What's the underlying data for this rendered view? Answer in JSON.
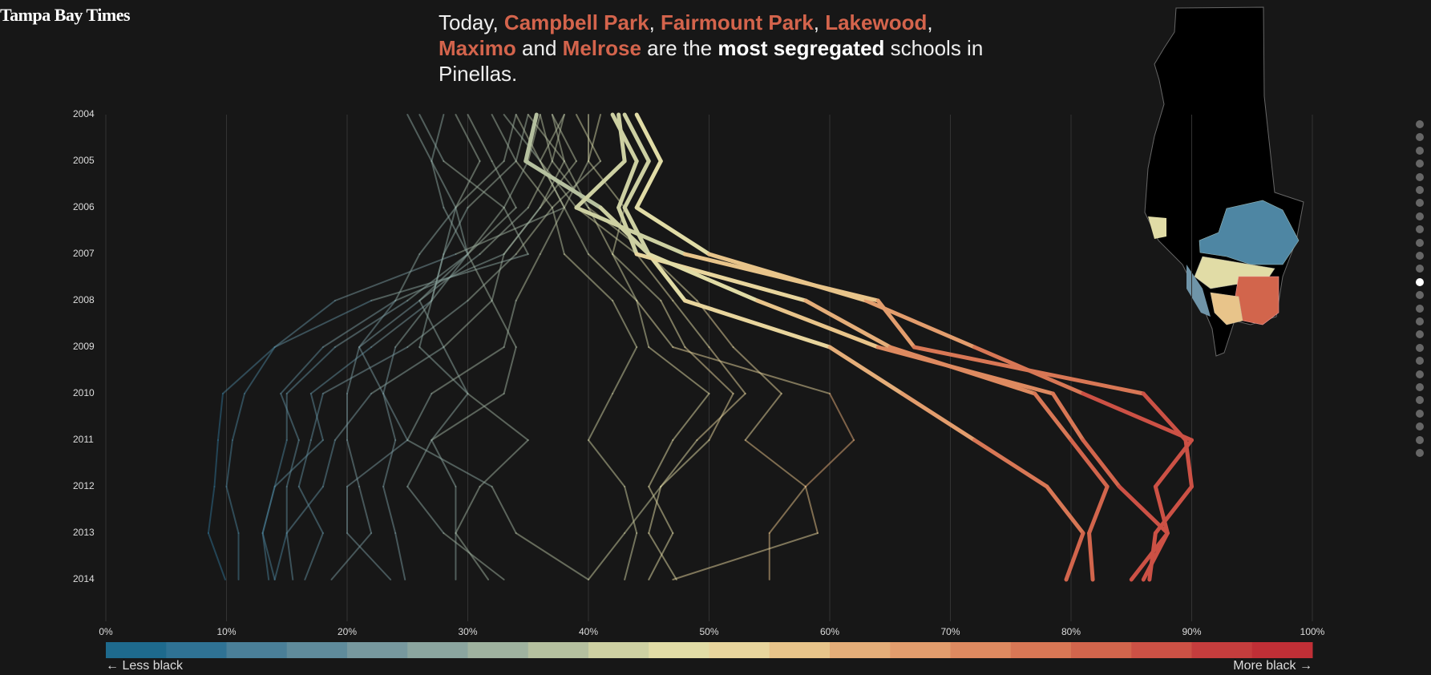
{
  "logo": "Tampa Bay Times",
  "headline": [
    "Today,",
    "Campbell Park",
    ",",
    "Fairmount Park",
    ",",
    "Lakewood",
    ",",
    "Maximo",
    "and",
    "Melrose",
    "are the",
    "most segregated",
    "schools in Pinellas."
  ],
  "chart_data": {
    "type": "line",
    "categories": [
      "2004",
      "2005",
      "2006",
      "2007",
      "2008",
      "2009",
      "2010",
      "2011",
      "2012",
      "2013",
      "2014"
    ],
    "xlim": [
      0,
      100
    ],
    "xticks": [
      {
        "value": 0,
        "label": "0%"
      },
      {
        "value": 10,
        "label": "10%"
      },
      {
        "value": 20,
        "label": "20%"
      },
      {
        "value": 30,
        "label": "30%"
      },
      {
        "value": 40,
        "label": "40%"
      },
      {
        "value": 50,
        "label": "50%"
      },
      {
        "value": 60,
        "label": "60%"
      },
      {
        "value": 70,
        "label": "70%"
      },
      {
        "value": 80,
        "label": "80%"
      },
      {
        "value": 90,
        "label": "90%"
      },
      {
        "value": 100,
        "label": "100%"
      }
    ],
    "grid": true,
    "colors": [
      "#1e6a8d",
      "#2f7294",
      "#4a7f98",
      "#5f8b9b",
      "#77989e",
      "#8ba59f",
      "#9fb29f",
      "#b5c09f",
      "#cdd0a2",
      "#e1dca6",
      "#e8d59d",
      "#e8c48a",
      "#e5ae79",
      "#e39d6d",
      "#de8a60",
      "#d87755",
      "#d2654c",
      "#cc5145",
      "#c53d3d",
      "#c02f36"
    ],
    "color_scale_labels": [
      "← Less black",
      "More black →"
    ],
    "series": [
      {
        "width": 2,
        "values": [
          26,
          28,
          33,
          35,
          22,
          14,
          9.7,
          9.3,
          9,
          8.5,
          9.9
        ]
      },
      {
        "width": 2,
        "values": [
          34,
          36,
          38,
          29,
          19,
          14,
          11.5,
          10.5,
          10,
          11,
          11
        ]
      },
      {
        "width": 2,
        "values": [
          30,
          32,
          34,
          30,
          25,
          19,
          15,
          15,
          14,
          13,
          14
        ]
      },
      {
        "width": 2,
        "values": [
          37,
          38,
          36,
          33,
          24,
          18,
          14.5,
          16,
          15,
          15,
          15.5
        ]
      },
      {
        "width": 2,
        "values": [
          28,
          27,
          29,
          28,
          27,
          22,
          17,
          18,
          14,
          13,
          13.5
        ]
      },
      {
        "width": 2,
        "values": [
          35,
          34,
          37,
          34,
          30,
          25,
          18,
          17,
          16,
          18,
          16.5
        ]
      },
      {
        "width": 2,
        "values": [
          38,
          37,
          35,
          31,
          26,
          21,
          20,
          20,
          21,
          22,
          18.7
        ]
      },
      {
        "width": 2,
        "values": [
          25,
          27,
          28,
          30,
          32,
          28,
          22,
          19,
          18,
          15,
          14
        ]
      },
      {
        "width": 2,
        "values": [
          36,
          35,
          33,
          30,
          27,
          24,
          23,
          25,
          20,
          20,
          23.6
        ]
      },
      {
        "width": 2,
        "values": [
          34,
          33,
          29,
          26,
          24,
          21,
          23,
          24,
          23,
          24,
          24.8
        ]
      },
      {
        "width": 2,
        "values": [
          29,
          31,
          29,
          30,
          26,
          28,
          30,
          27,
          29,
          29,
          29
        ]
      },
      {
        "width": 2,
        "values": [
          32,
          34,
          30,
          28,
          27,
          26,
          30,
          35,
          31,
          29,
          31.7
        ]
      },
      {
        "width": 2,
        "values": [
          37,
          39,
          36,
          33,
          32,
          34,
          33,
          27,
          25,
          28,
          33
        ]
      },
      {
        "width": 2,
        "values": [
          40,
          40,
          38,
          36,
          34,
          33,
          27,
          25,
          32,
          34,
          40
        ]
      },
      {
        "width": 2,
        "values": [
          39,
          41,
          37,
          38,
          42,
          44,
          42,
          40,
          43,
          44,
          43
        ]
      },
      {
        "width": 2,
        "values": [
          41,
          40,
          43,
          42,
          44,
          45,
          50,
          47,
          45,
          47,
          45
        ]
      },
      {
        "width": 2,
        "values": [
          38,
          36,
          39,
          44,
          47,
          50,
          53,
          49,
          46,
          43,
          40
        ]
      },
      {
        "width": 2,
        "values": [
          36,
          37,
          40,
          45,
          49,
          52,
          56,
          53,
          58,
          55,
          55
        ]
      },
      {
        "width": 2,
        "values": [
          33,
          36,
          38,
          40,
          44,
          47,
          60,
          62,
          58,
          59,
          47
        ]
      },
      {
        "width": 2,
        "values": [
          35,
          38,
          40,
          42,
          46,
          48,
          52,
          50,
          46,
          45,
          47.3
        ]
      },
      {
        "width": 5,
        "values": [
          35.7,
          34.8,
          41,
          45,
          48,
          60,
          66,
          72,
          78,
          81,
          79.6
        ]
      },
      {
        "width": 5,
        "values": [
          42,
          44,
          42.5,
          44,
          58,
          65,
          77,
          80,
          83,
          81.5,
          81.8
        ]
      },
      {
        "width": 5,
        "values": [
          43,
          45,
          43,
          45,
          54,
          64,
          78.5,
          81,
          84,
          88,
          85
        ]
      },
      {
        "width": 5,
        "values": [
          44,
          46,
          44,
          50,
          63,
          72,
          81,
          90,
          87,
          88,
          86
        ]
      },
      {
        "width": 5,
        "values": [
          42.5,
          43,
          39,
          48,
          64,
          67,
          86,
          89.5,
          90,
          87,
          86.5
        ]
      }
    ]
  }
}
